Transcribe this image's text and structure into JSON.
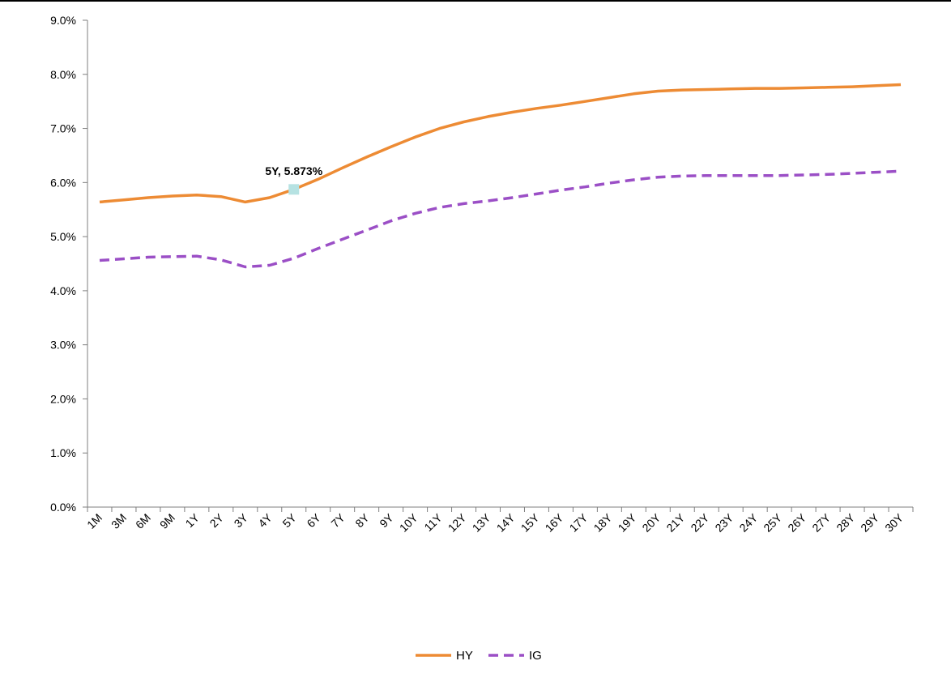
{
  "chart_data": {
    "type": "line",
    "title": "",
    "xlabel": "",
    "ylabel": "",
    "ylim": [
      0,
      9
    ],
    "yticks": [
      "0.0%",
      "1.0%",
      "2.0%",
      "3.0%",
      "4.0%",
      "5.0%",
      "6.0%",
      "7.0%",
      "8.0%",
      "9.0%"
    ],
    "grid": false,
    "legend_position": "bottom",
    "categories": [
      "1M",
      "3M",
      "6M",
      "9M",
      "1Y",
      "2Y",
      "3Y",
      "4Y",
      "5Y",
      "6Y",
      "7Y",
      "8Y",
      "9Y",
      "10Y",
      "11Y",
      "12Y",
      "13Y",
      "14Y",
      "15Y",
      "16Y",
      "17Y",
      "18Y",
      "19Y",
      "20Y",
      "21Y",
      "22Y",
      "23Y",
      "24Y",
      "25Y",
      "26Y",
      "27Y",
      "28Y",
      "29Y",
      "30Y"
    ],
    "series": [
      {
        "name": "HY",
        "color": "#ED8B34",
        "style": "solid",
        "values": [
          5.64,
          5.68,
          5.72,
          5.75,
          5.77,
          5.74,
          5.64,
          5.72,
          5.873,
          6.06,
          6.27,
          6.47,
          6.66,
          6.84,
          7.0,
          7.12,
          7.22,
          7.3,
          7.37,
          7.43,
          7.5,
          7.57,
          7.64,
          7.69,
          7.71,
          7.72,
          7.73,
          7.74,
          7.74,
          7.75,
          7.76,
          7.77,
          7.79,
          7.81
        ]
      },
      {
        "name": "IG",
        "color": "#9B4FC6",
        "style": "dashed",
        "values": [
          4.56,
          4.59,
          4.62,
          4.63,
          4.64,
          4.57,
          4.44,
          4.47,
          4.6,
          4.78,
          4.95,
          5.12,
          5.29,
          5.43,
          5.54,
          5.61,
          5.66,
          5.72,
          5.79,
          5.86,
          5.92,
          5.99,
          6.05,
          6.1,
          6.12,
          6.13,
          6.13,
          6.13,
          6.13,
          6.14,
          6.15,
          6.17,
          6.19,
          6.21
        ]
      }
    ],
    "annotation": {
      "text": "5Y, 5.873%",
      "x": "5Y",
      "y": 5.873,
      "marker_color": "#B6E2E2"
    }
  }
}
